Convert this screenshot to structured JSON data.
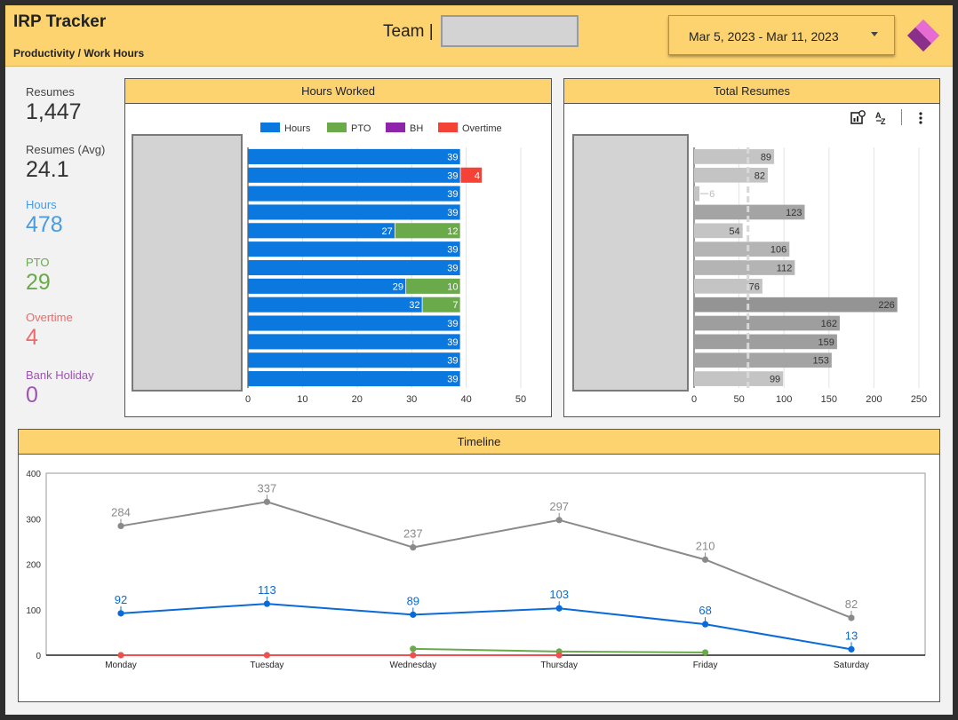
{
  "header": {
    "title": "IRP Tracker",
    "subtitle": "Productivity / Work Hours",
    "team_label": "Team |",
    "date_range": "Mar 5, 2023 - Mar 11, 2023",
    "logo_icon": "power-apps-logo-icon"
  },
  "kpis": [
    {
      "label": "Resumes",
      "value": "1,447",
      "color": "#333333"
    },
    {
      "label": "Resumes (Avg)",
      "value": "24.1",
      "color": "#333333"
    },
    {
      "label": "Hours",
      "value": "478",
      "color": "#4a9be0"
    },
    {
      "label": "PTO",
      "value": "29",
      "color": "#6aaa4a"
    },
    {
      "label": "Overtime",
      "value": "4",
      "color": "#ee6a6a"
    },
    {
      "label": "Bank Holiday",
      "value": "0",
      "color": "#9c55b0"
    }
  ],
  "panels": {
    "hours_title": "Hours Worked",
    "resumes_title": "Total Resumes",
    "timeline_title": "Timeline"
  },
  "toolbar_icons": [
    "chart-settings-icon",
    "sort-az-icon",
    "more-vertical-icon"
  ],
  "chart_data": [
    {
      "type": "bar",
      "orientation": "horizontal",
      "stacked": true,
      "title": "Hours Worked",
      "legend_position": "top",
      "xlim": [
        0,
        50
      ],
      "xticks": [
        0,
        10,
        20,
        30,
        40,
        50
      ],
      "grid": true,
      "series": [
        {
          "name": "Hours",
          "color": "#0a78de",
          "values": [
            39,
            39,
            39,
            39,
            27,
            39,
            39,
            29,
            32,
            39,
            39,
            39,
            39
          ]
        },
        {
          "name": "PTO",
          "color": "#6aaa4a",
          "values": [
            0,
            0,
            0,
            0,
            12,
            0,
            0,
            10,
            7,
            0,
            0,
            0,
            0
          ]
        },
        {
          "name": "BH",
          "color": "#8e24aa",
          "values": [
            0,
            0,
            0,
            0,
            0,
            0,
            0,
            0,
            0,
            0,
            0,
            0,
            0
          ]
        },
        {
          "name": "Overtime",
          "color": "#f44336",
          "values": [
            0,
            4,
            0,
            0,
            0,
            0,
            0,
            0,
            0,
            0,
            0,
            0,
            0
          ]
        }
      ]
    },
    {
      "type": "bar",
      "orientation": "horizontal",
      "title": "Total Resumes",
      "values": [
        89,
        82,
        6,
        123,
        54,
        106,
        112,
        76,
        226,
        162,
        159,
        153,
        99
      ],
      "bar_colors": [
        "#c4c4c4",
        "#c4c4c4",
        "#c4c4c4",
        "#a4a4a4",
        "#c4c4c4",
        "#b4b4b4",
        "#b4b4b4",
        "#c4c4c4",
        "#949494",
        "#9e9e9e",
        "#9e9e9e",
        "#a4a4a4",
        "#c4c4c4"
      ],
      "reference_line": 60,
      "xlim": [
        0,
        250
      ],
      "xticks": [
        0,
        50,
        100,
        150,
        200,
        250
      ],
      "grid": true
    },
    {
      "type": "line",
      "title": "Timeline",
      "categories": [
        "Monday",
        "Tuesday",
        "Wednesday",
        "Thursday",
        "Friday",
        "Saturday"
      ],
      "ylim": [
        0,
        400
      ],
      "yticks": [
        0,
        100,
        200,
        300,
        400
      ],
      "series": [
        {
          "color": "#8a8a8a",
          "values": [
            284,
            337,
            237,
            297,
            210,
            82
          ],
          "labels": true
        },
        {
          "color": "#0a6ad8",
          "values": [
            92,
            113,
            89,
            103,
            68,
            13
          ],
          "labels": true
        },
        {
          "color": "#6aaa4a",
          "values": [
            null,
            null,
            14,
            8,
            6,
            null
          ],
          "labels": false
        },
        {
          "color": "#ee4f4f",
          "values": [
            0,
            0,
            0,
            0,
            null,
            null
          ],
          "labels": false
        }
      ]
    }
  ]
}
